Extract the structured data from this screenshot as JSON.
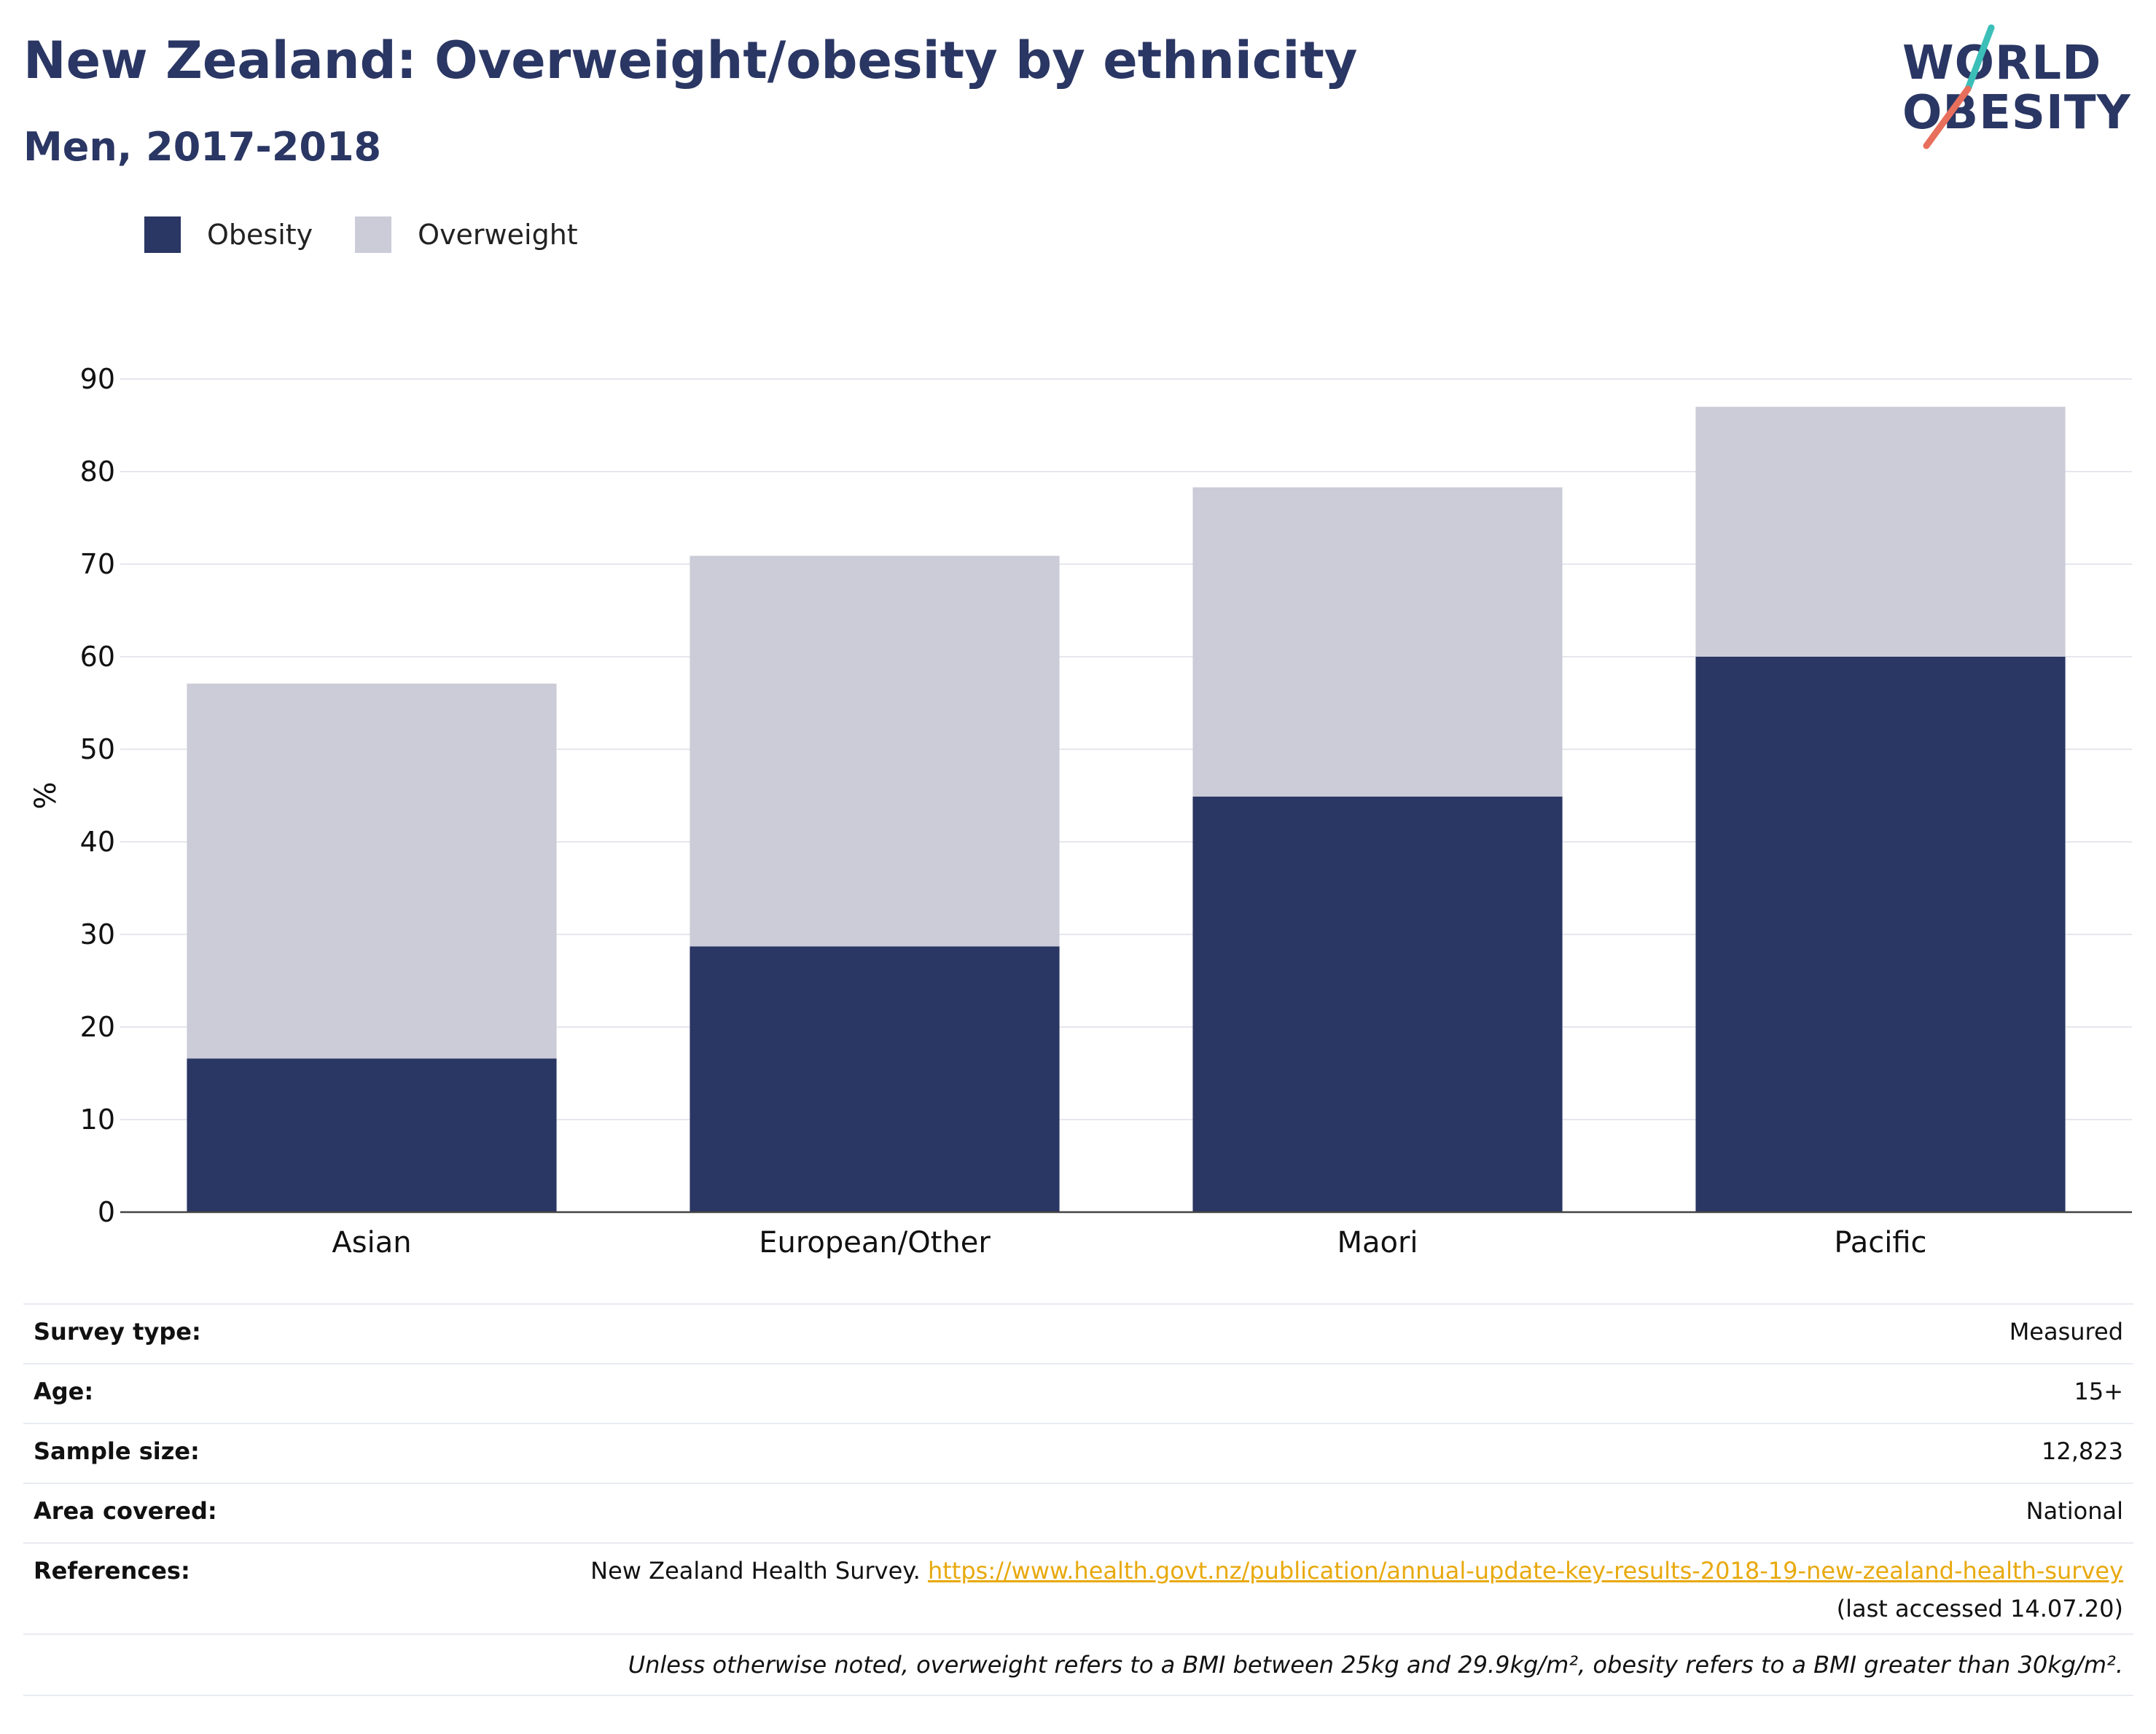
{
  "header": {
    "title": "New Zealand: Overweight/obesity by ethnicity",
    "subtitle": "Men, 2017-2018"
  },
  "logo": {
    "line1": "WORLD",
    "line2": "OBESITY",
    "accent_teal": "#3bbfb8",
    "accent_coral": "#e86f5c"
  },
  "colors": {
    "obesity": "#2a3663",
    "overweight": "#cbccd8",
    "title": "#2a3663",
    "link": "#e8a90e"
  },
  "chart_data": {
    "type": "bar",
    "stacked": true,
    "categories": [
      "Asian",
      "European/Other",
      "Maori",
      "Pacific"
    ],
    "series": [
      {
        "name": "Obesity",
        "values": [
          16.6,
          28.7,
          44.9,
          60.0
        ],
        "color": "#2a3663"
      },
      {
        "name": "Overweight",
        "values": [
          40.5,
          42.2,
          33.4,
          27.0
        ],
        "color": "#cbccd8"
      }
    ],
    "ylabel": "%",
    "ylim": [
      0,
      90
    ],
    "yticks": [
      "0",
      "10",
      "20",
      "30",
      "40",
      "50",
      "60",
      "70",
      "80",
      "90"
    ],
    "grid": true,
    "legend_position": "top-left"
  },
  "details": {
    "survey_type_label": "Survey type:",
    "survey_type_value": "Measured",
    "age_label": "Age:",
    "age_value": "15+",
    "sample_size_label": "Sample size:",
    "sample_size_value": "12,823",
    "area_label": "Area covered:",
    "area_value": "National",
    "references_label": "References:",
    "references_text": "New Zealand Health Survey. ",
    "references_url": "https://www.health.govt.nz/publication/annual-update-key-results-2018-19-new-zealand-health-survey",
    "references_accessed": "(last accessed 14.07.20)",
    "note": "Unless otherwise noted, overweight refers to a BMI between 25kg and 29.9kg/m², obesity refers to a BMI greater than 30kg/m²."
  }
}
